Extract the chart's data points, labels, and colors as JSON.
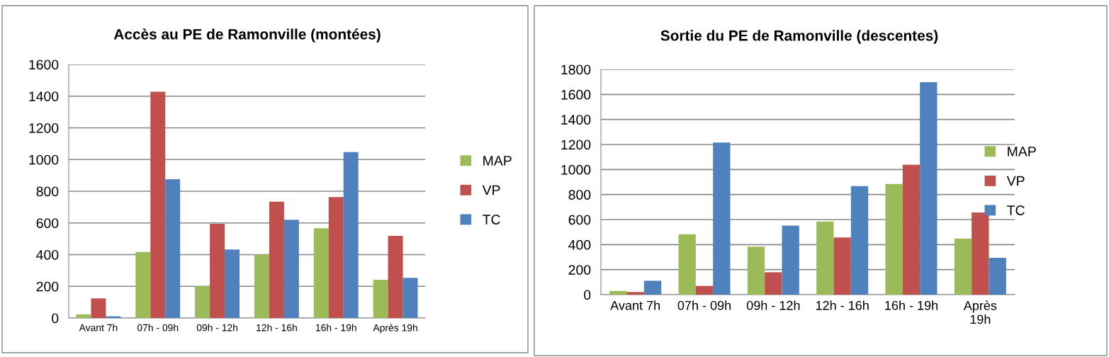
{
  "chart_data": [
    {
      "type": "bar",
      "title": "Accès au PE de Ramonville (montées)",
      "categories": [
        "Avant 7h",
        "07h - 09h",
        "09h - 12h",
        "12h - 16h",
        "16h - 19h",
        "Après 19h"
      ],
      "series": [
        {
          "name": "MAP",
          "color": "#9bbb59",
          "values": [
            23,
            417,
            201,
            401,
            567,
            241
          ]
        },
        {
          "name": "VP",
          "color": "#c0504d",
          "values": [
            124,
            1428,
            594,
            734,
            763,
            518
          ]
        },
        {
          "name": "TC",
          "color": "#4f81bd",
          "values": [
            11,
            876,
            432,
            620,
            1047,
            254
          ]
        }
      ],
      "ylim": [
        0,
        1600
      ],
      "yticks": [
        0,
        200,
        400,
        600,
        800,
        1000,
        1200,
        1400,
        1600
      ],
      "grid": "y",
      "legend": "right"
    },
    {
      "type": "bar",
      "title": "Sortie du PE de Ramonville (descentes)",
      "categories": [
        "Avant 7h",
        "07h - 09h",
        "09h - 12h",
        "12h - 16h",
        "16h - 19h",
        "Après\n19h"
      ],
      "series": [
        {
          "name": "MAP",
          "color": "#9bbb59",
          "values": [
            30,
            483,
            383,
            585,
            884,
            448
          ]
        },
        {
          "name": "VP",
          "color": "#c0504d",
          "values": [
            21,
            70,
            179,
            457,
            1039,
            657
          ]
        },
        {
          "name": "TC",
          "color": "#4f81bd",
          "values": [
            111,
            1216,
            552,
            868,
            1698,
            295
          ]
        }
      ],
      "ylim": [
        0,
        1800
      ],
      "yticks": [
        0,
        200,
        400,
        600,
        800,
        1000,
        1200,
        1400,
        1600,
        1800
      ],
      "grid": "y",
      "legend": "right"
    }
  ]
}
